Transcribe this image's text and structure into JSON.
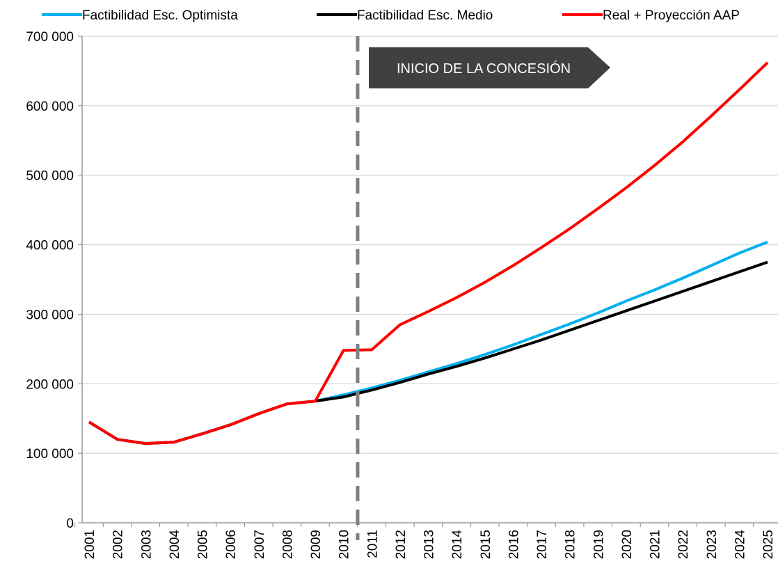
{
  "chart_data": {
    "type": "line",
    "categories": [
      "2001",
      "2002",
      "2003",
      "2004",
      "2005",
      "2006",
      "2007",
      "2008",
      "2009",
      "2010",
      "2011",
      "2012",
      "2013",
      "2014",
      "2015",
      "2016",
      "2017",
      "2018",
      "2019",
      "2020",
      "2021",
      "2022",
      "2023",
      "2024",
      "2025"
    ],
    "series": [
      {
        "name": "Factibilidad Esc. Optimista",
        "color": "#00b0f0",
        "values": [
          145000,
          120000,
          114000,
          116000,
          128000,
          141000,
          157000,
          171000,
          175000,
          184000,
          194000,
          205000,
          217000,
          229000,
          242000,
          256000,
          271000,
          286000,
          302000,
          319000,
          335000,
          352000,
          370000,
          388000,
          404000
        ]
      },
      {
        "name": "Factibilidad Esc. Medio",
        "color": "#000000",
        "values": [
          145000,
          120000,
          114000,
          116000,
          128000,
          141000,
          157000,
          171000,
          175000,
          181000,
          191000,
          202000,
          214000,
          225000,
          237000,
          250000,
          263000,
          277000,
          291000,
          305000,
          319000,
          333000,
          347000,
          361000,
          375000
        ]
      },
      {
        "name": "Real + Proyección AAP",
        "color": "#ff0000",
        "values": [
          145000,
          120000,
          114000,
          116000,
          128000,
          141000,
          157000,
          171000,
          175000,
          248000,
          249000,
          285000,
          304000,
          324000,
          346000,
          370000,
          396000,
          423000,
          452000,
          482000,
          514000,
          548000,
          585000,
          623000,
          662000
        ]
      }
    ],
    "annotation": "INICIO DE LA CONCESIÓN",
    "ylim": [
      0,
      700000
    ],
    "yticks": [
      0,
      {
        "value": 100000,
        "label": "100 000"
      },
      {
        "value": 200000,
        "label": "200 000"
      },
      {
        "value": 300000,
        "label": "300 000"
      },
      {
        "value": 400000,
        "label": "400 000"
      },
      {
        "value": 500000,
        "label": "500 000"
      },
      {
        "value": 600000,
        "label": "600 000"
      },
      {
        "value": 700000,
        "label": "700 000"
      }
    ],
    "grid": true
  }
}
